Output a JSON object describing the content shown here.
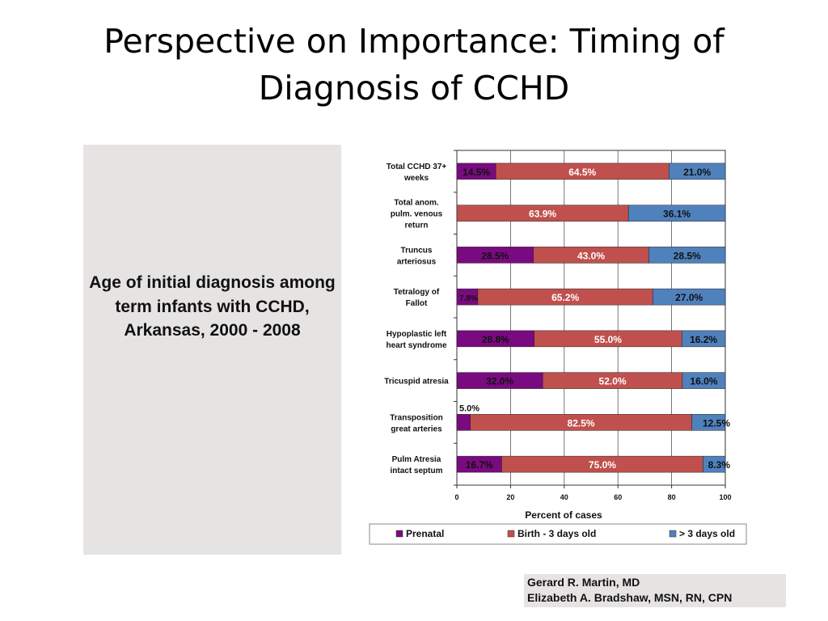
{
  "slide": {
    "title": "Perspective on Importance: Timing of Diagnosis of CCHD"
  },
  "caption": {
    "text": "Age of initial diagnosis among term infants with CCHD, Arkansas, 2000 - 2008"
  },
  "credits": {
    "line1": "Gerard R. Martin, MD",
    "line2": "Elizabeth A. Bradshaw, MSN, RN, CPN"
  },
  "chart_data": {
    "type": "bar",
    "orientation": "horizontal",
    "stacked": true,
    "categories": [
      [
        "Total CCHD 37+",
        "weeks"
      ],
      [
        "Total anom.",
        "pulm. venous",
        "return"
      ],
      [
        "Truncus",
        "arteriosus"
      ],
      [
        "Tetralogy of",
        "Fallot"
      ],
      [
        "Hypoplastic left",
        "heart syndrome"
      ],
      [
        "Tricuspid atresia"
      ],
      [
        "Transposition",
        "great arteries"
      ],
      [
        "Pulm Atresia",
        "intact septum"
      ]
    ],
    "series": [
      {
        "name": "Prenatal",
        "color": "#7a0a80",
        "values": [
          14.5,
          0,
          28.5,
          7.8,
          28.8,
          32.0,
          5.0,
          16.7
        ],
        "labels": [
          "14.5%",
          "",
          "28.5%",
          "7.8%",
          "28.8%",
          "32.0%",
          "5.0%",
          "16.7%"
        ]
      },
      {
        "name": "Birth - 3 days old",
        "color": "#c0504d",
        "values": [
          64.5,
          63.9,
          43.0,
          65.2,
          55.0,
          52.0,
          82.5,
          75.0
        ],
        "labels": [
          "64.5%",
          "63.9%",
          "43.0%",
          "65.2%",
          "55.0%",
          "52.0%",
          "82.5%",
          "75.0%"
        ]
      },
      {
        "name": "> 3 days old",
        "color": "#4f81bd",
        "values": [
          21.0,
          36.1,
          28.5,
          27.0,
          16.2,
          16.0,
          12.5,
          8.3
        ],
        "labels": [
          "21.0%",
          "36.1%",
          "28.5%",
          "27.0%",
          "16.2%",
          "16.0%",
          "12.5%",
          "8.3%"
        ]
      }
    ],
    "xlabel": "Percent of cases",
    "xlim": [
      0,
      100
    ],
    "xticks": [
      "0",
      "20",
      "40",
      "60",
      "80",
      "100"
    ],
    "grid": "vertical",
    "legend": "bottom"
  }
}
